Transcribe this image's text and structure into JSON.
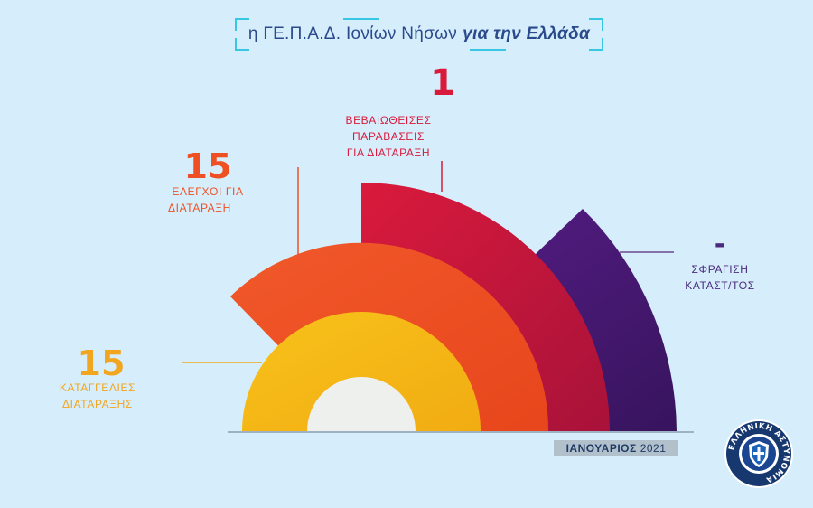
{
  "header": {
    "title_prefix": "η ΓΕ.Π.Α.Δ. Ιονίων Νήσων",
    "title_bold": "για την Ελλάδα"
  },
  "chart_data": {
    "type": "radial-bar",
    "categories": [
      {
        "value": "15",
        "label_lines": [
          "ΚΑΤΑΓΓΕΛΙΕΣ",
          "ΔΙΑΤΑΡΑΞΗΣ"
        ],
        "color": "#f5b914",
        "label_color": "#f2a51f"
      },
      {
        "value": "15",
        "label_lines": [
          "ΕΛΕΓΧΟΙ ΓΙΑ",
          "ΔΙΑΤΑΡΑΞΗ"
        ],
        "color": "#ef5023",
        "label_color": "#ef5023"
      },
      {
        "value": "1",
        "label_lines": [
          "ΒΕΒΑΙΩΘΕΙΣΕΣ",
          "ΠΑΡΑΒΑΣΕΙΣ",
          "ΓΙΑ ΔΙΑΤΑΡΑΞΗ"
        ],
        "color": "#d91a3c",
        "label_color": "#d91a3c"
      },
      {
        "value": "-",
        "label_lines": [
          "ΣΦΡΑΓΙΣΗ",
          "ΚΑΤΑΣΤ/ΤΟΣ"
        ],
        "color": "#4a1c7a",
        "label_color": "#4a2a7e"
      }
    ],
    "background": "#d6eefb"
  },
  "footer": {
    "month": "ΙΑΝΟΥΑΡΙΟΣ",
    "year": "2021",
    "logo_text": "ΕΛΛΗΝΙΚΗ ΑΣΤΥΝΟΜΙΑ"
  }
}
